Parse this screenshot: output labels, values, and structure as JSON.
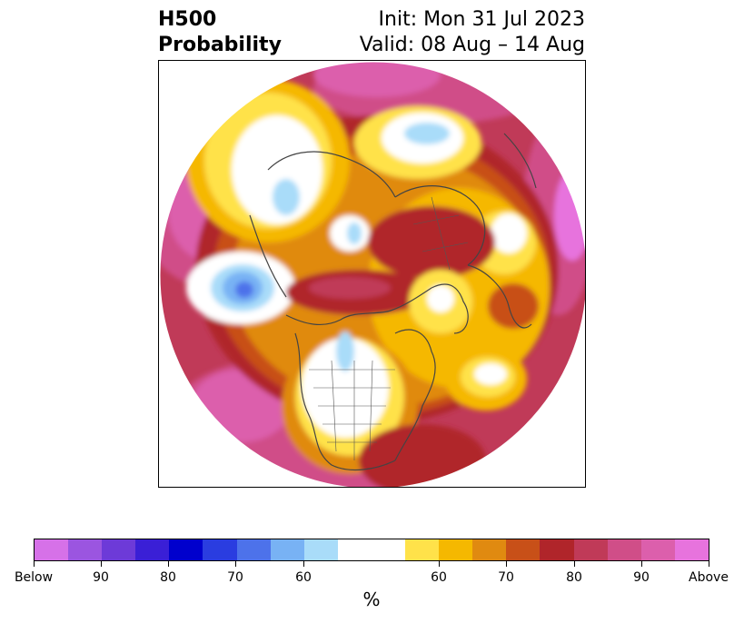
{
  "title": {
    "left_line1": "H500",
    "left_line2": "Probability",
    "right_line1": "Init: Mon 31 Jul 2023",
    "right_line2": "Valid: 08 Aug – 14 Aug"
  },
  "map": {
    "projection": "north-polar-stereographic",
    "field": "500 hPa height anomaly probability",
    "colors": {
      "below_90plus": "#d671e8",
      "below_90": "#9b55e0",
      "below_85": "#6d3ad8",
      "below_80": "#3a1fd6",
      "below_75": "#0000cd",
      "below_70": "#2a3de0",
      "below_65": "#4d72ea",
      "below_60": "#78b2f4",
      "below_55": "#a9dcf9",
      "neutral": "#ffffff",
      "above_55": "#ffe24a",
      "above_60": "#f5b800",
      "above_65": "#e08a10",
      "above_70": "#c85018",
      "above_75": "#b0252a",
      "above_80": "#c03a58",
      "above_85": "#d04e88",
      "above_90": "#dc5fac",
      "above_90plus": "#e773dd"
    }
  },
  "colorbar": {
    "unit_label": "%",
    "swatches": [
      "#d671e8",
      "#9b55e0",
      "#6d3ad8",
      "#3a1fd6",
      "#0000cd",
      "#2a3de0",
      "#4d72ea",
      "#78b2f4",
      "#a9dcf9",
      "#ffffff",
      "#ffe24a",
      "#f5b800",
      "#e08a10",
      "#c85018",
      "#b0252a",
      "#c03a58",
      "#d04e88",
      "#dc5fac",
      "#e773dd"
    ],
    "tick_labels": [
      "Below",
      "90",
      "80",
      "70",
      "60",
      "60",
      "70",
      "80",
      "90",
      "Above"
    ]
  }
}
